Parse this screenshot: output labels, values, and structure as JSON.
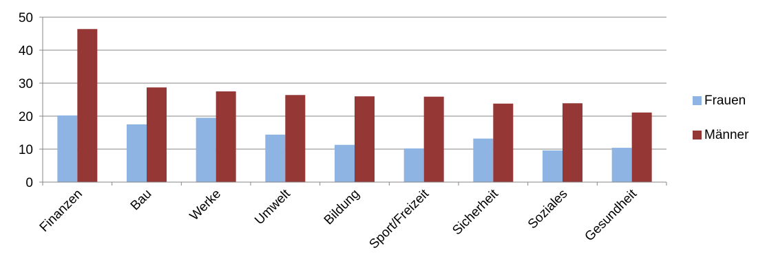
{
  "chart_data": {
    "type": "bar",
    "categories": [
      "Finanzen",
      "Bau",
      "Werke",
      "Umwelt",
      "Bildung",
      "Sport/Freizeit",
      "Sicherheit",
      "Soziales",
      "Gesundheit"
    ],
    "series": [
      {
        "name": "Frauen",
        "color": "#8EB4E3",
        "values": [
          20.2,
          17.5,
          19.5,
          14.4,
          11.3,
          10.2,
          13.2,
          9.6,
          10.4
        ]
      },
      {
        "name": "Männer",
        "color": "#953735",
        "values": [
          46.4,
          28.7,
          27.5,
          26.4,
          26.0,
          25.9,
          23.8,
          23.9,
          21.1
        ]
      }
    ],
    "title": "",
    "xlabel": "",
    "ylabel": "",
    "ylim": [
      0,
      50
    ],
    "yticks": [
      0,
      10,
      20,
      30,
      40,
      50
    ],
    "grid": true,
    "legend_position": "right"
  }
}
